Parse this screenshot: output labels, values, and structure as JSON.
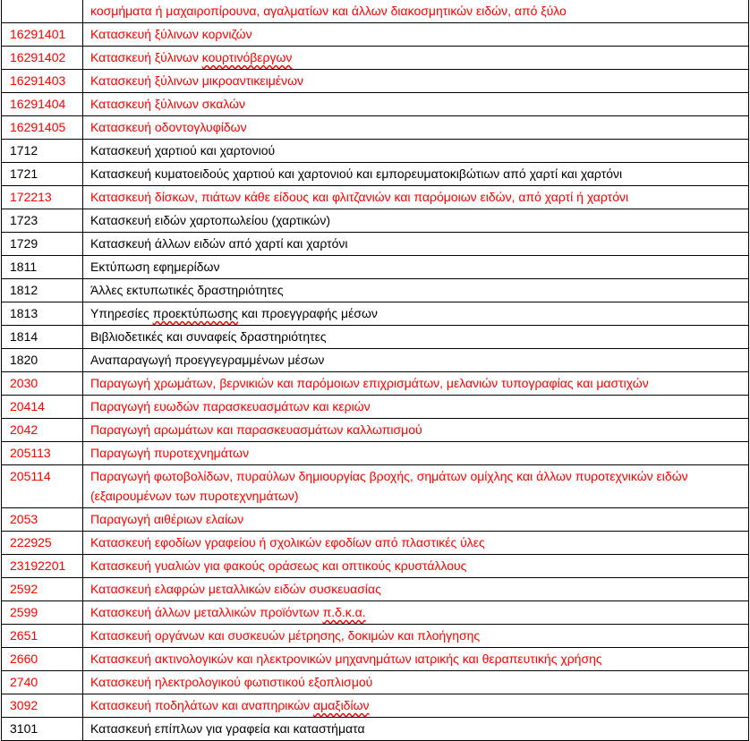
{
  "colors": {
    "highlight": "#ff0000",
    "normal": "#000000",
    "spellcheck": "#e00000"
  },
  "rows": [
    {
      "code": "",
      "desc": [
        {
          "t": "κοσμήματα ή μαχαιροπίρουνα, αγαλματίων και άλλων διακοσμητικών ειδών, από ξύλο"
        }
      ],
      "red": true
    },
    {
      "code": "16291401",
      "desc": [
        {
          "t": "Κατασκευή ξύλινων κορνιζών"
        }
      ],
      "red": true
    },
    {
      "code": "16291402",
      "desc": [
        {
          "t": "Κατασκευή ξύλινων "
        },
        {
          "t": "κουρτινόβεργων",
          "flag": true
        }
      ],
      "red": true
    },
    {
      "code": "16291403",
      "desc": [
        {
          "t": "Κατασκευή ξύλινων μικροαντικειμένων"
        }
      ],
      "red": true
    },
    {
      "code": "16291404",
      "desc": [
        {
          "t": "Κατασκευή ξύλινων σκαλών"
        }
      ],
      "red": true
    },
    {
      "code": "16291405",
      "desc": [
        {
          "t": "Κατασκευή οδοντογλυφίδων"
        }
      ],
      "red": true
    },
    {
      "code": "1712",
      "desc": [
        {
          "t": "Κατασκευή χαρτιού και χαρτονιού"
        }
      ],
      "red": false
    },
    {
      "code": "1721",
      "desc": [
        {
          "t": "Κατασκευή κυματοειδούς χαρτιού και χαρτονιού και εμπορευματοκιβώτιων από χαρτί και χαρτόνι"
        }
      ],
      "red": false
    },
    {
      "code": "172213",
      "desc": [
        {
          "t": "Κατασκευή δίσκων, πιάτων κάθε είδους και φλιτζανιών και παρόμοιων ειδών, από χαρτί ή χαρτόνι"
        }
      ],
      "red": true
    },
    {
      "code": "1723",
      "desc": [
        {
          "t": "Κατασκευή ειδών χαρτοπωλείου (χαρτικών)"
        }
      ],
      "red": false
    },
    {
      "code": "1729",
      "desc": [
        {
          "t": "Κατασκευή άλλων ειδών από χαρτί και χαρτόνι"
        }
      ],
      "red": false
    },
    {
      "code": "1811",
      "desc": [
        {
          "t": "Εκτύπωση εφημερίδων"
        }
      ],
      "red": false
    },
    {
      "code": "1812",
      "desc": [
        {
          "t": "Άλλες εκτυπωτικές δραστηριότητες"
        }
      ],
      "red": false
    },
    {
      "code": "1813",
      "desc": [
        {
          "t": "Υπηρεσίες "
        },
        {
          "t": "προεκτύπωσης",
          "flag": true
        },
        {
          "t": " και προεγγραφής μέσων"
        }
      ],
      "red": false
    },
    {
      "code": "1814",
      "desc": [
        {
          "t": "Βιβλιοδετικές και συναφείς δραστηριότητες"
        }
      ],
      "red": false
    },
    {
      "code": "1820",
      "desc": [
        {
          "t": "Αναπαραγωγή προεγγεγραμμένων μέσων"
        }
      ],
      "red": false
    },
    {
      "code": "2030",
      "desc": [
        {
          "t": "Παραγωγή χρωμάτων, βερνικιών και παρόμοιων επιχρισμάτων, μελανιών τυπογραφίας και μαστιχών"
        }
      ],
      "red": true
    },
    {
      "code": "20414",
      "desc": [
        {
          "t": "Παραγωγή ευωδών παρασκευασμάτων και κεριών"
        }
      ],
      "red": true
    },
    {
      "code": "2042",
      "desc": [
        {
          "t": "Παραγωγή αρωμάτων και παρασκευασμάτων καλλωπισμού"
        }
      ],
      "red": true
    },
    {
      "code": "205113",
      "desc": [
        {
          "t": "Παραγωγή πυροτεχνημάτων"
        }
      ],
      "red": true
    },
    {
      "code": "205114",
      "desc": [
        {
          "t": "Παραγωγή φωτοβολίδων, πυραύλων δημιουργίας βροχής, σημάτων ομίχλης και άλλων πυροτεχνικών ειδών (εξαιρουμένων των πυροτεχνημάτων)"
        }
      ],
      "red": true
    },
    {
      "code": "2053",
      "desc": [
        {
          "t": "Παραγωγή αιθέριων ελαίων"
        }
      ],
      "red": true
    },
    {
      "code": "222925",
      "desc": [
        {
          "t": "Κατασκευή εφοδίων γραφείου ή σχολικών εφοδίων από πλαστικές ύλες"
        }
      ],
      "red": true
    },
    {
      "code": "23192201",
      "desc": [
        {
          "t": "Κατασκευή γυαλιών για φακούς οράσεως και οπτικούς κρυστάλλους"
        }
      ],
      "red": true
    },
    {
      "code": "2592",
      "desc": [
        {
          "t": "Κατασκευή ελαφρών μεταλλικών ειδών συσκευασίας"
        }
      ],
      "red": true
    },
    {
      "code": "2599",
      "desc": [
        {
          "t": "Κατασκευή άλλων μεταλλικών προϊόντων "
        },
        {
          "t": "π.δ.κ.α.",
          "flag": true
        }
      ],
      "red": true
    },
    {
      "code": "2651",
      "desc": [
        {
          "t": "Κατασκευή οργάνων και συσκευών μέτρησης, δοκιμών και πλοήγησης"
        }
      ],
      "red": true
    },
    {
      "code": "2660",
      "desc": [
        {
          "t": "Κατασκευή ακτινολογικών και ηλεκτρονικών μηχανημάτων ιατρικής και θεραπευτικής χρήσης"
        }
      ],
      "red": true
    },
    {
      "code": "2740",
      "desc": [
        {
          "t": "Κατασκευή ηλεκτρολογικού φωτιστικού εξοπλισμού"
        }
      ],
      "red": true
    },
    {
      "code": "3092",
      "desc": [
        {
          "t": "Κατασκευή ποδηλάτων και αναπηρικών "
        },
        {
          "t": "αμαξιδίων",
          "flag": true
        }
      ],
      "red": true
    },
    {
      "code": "3101",
      "desc": [
        {
          "t": "Κατασκευή επίπλων για γραφεία και καταστήματα"
        }
      ],
      "red": false
    }
  ]
}
